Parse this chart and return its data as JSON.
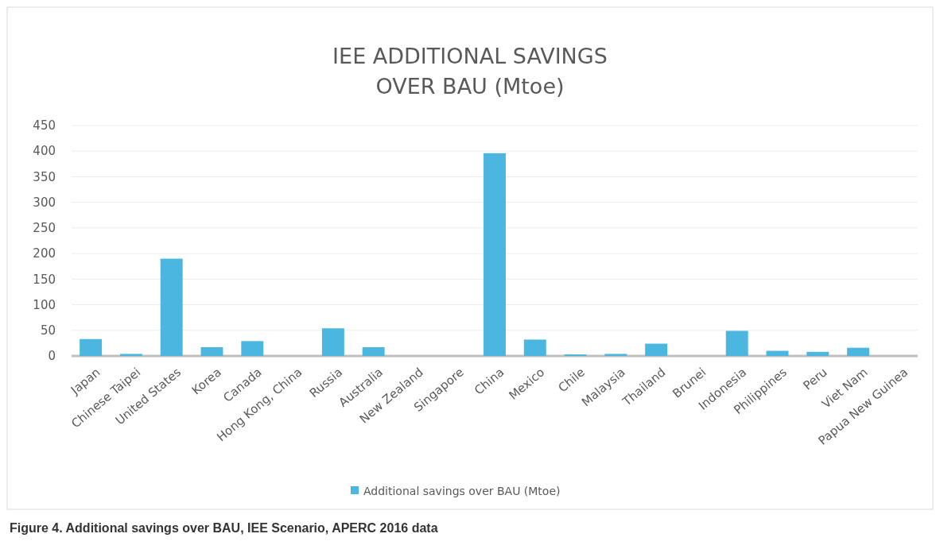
{
  "chart_data": {
    "type": "bar",
    "title": "IEE ADDITIONAL SAVINGS\nOVER BAU (Mtoe)",
    "categories": [
      "Japan",
      "Chinese Taipei",
      "United States",
      "Korea",
      "Canada",
      "Hong Kong, China",
      "Russia",
      "Australia",
      "New Zealand",
      "Singapore",
      "China",
      "Mexico",
      "Chile",
      "Malaysia",
      "Thailand",
      "Brunei",
      "Indonesia",
      "Philippines",
      "Peru",
      "Viet Nam",
      "Papua New Guinea"
    ],
    "series": [
      {
        "name": "Additional savings over BAU (Mtoe)",
        "color": "#4bb6e0",
        "values": [
          33,
          4,
          190,
          17,
          29,
          0,
          54,
          17,
          0,
          0,
          396,
          32,
          3,
          4,
          24,
          0,
          49,
          10,
          8,
          16,
          0
        ]
      }
    ],
    "ylim": [
      0,
      450
    ],
    "yticks": [
      0,
      50,
      100,
      150,
      200,
      250,
      300,
      350,
      400,
      450
    ],
    "grid": "y",
    "legend": "bottom",
    "annotations": [
      "Figure 4. Additional savings over BAU, IEE Scenario, APERC 2016 data"
    ]
  }
}
